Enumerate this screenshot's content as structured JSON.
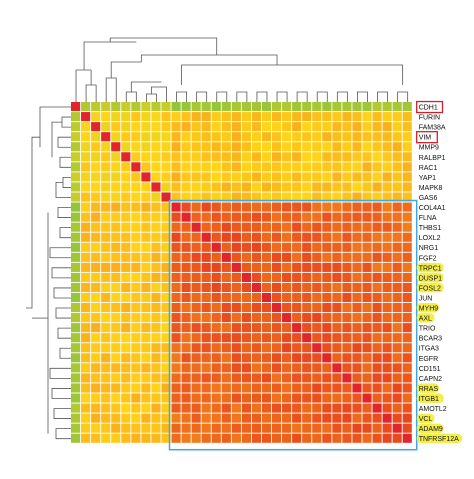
{
  "chart_data": {
    "type": "heatmap",
    "title": "",
    "xlabel": "",
    "ylabel": "",
    "row_labels": [
      "CDH1",
      "FURIN",
      "FAM38A",
      "VIM",
      "MMP9",
      "RALBP1",
      "RAC1",
      "YAP1",
      "MAPK8",
      "GAS6",
      "COL4A1",
      "FLNA",
      "THBS1",
      "LOXL2",
      "NRG1",
      "FGF2",
      "TRPC1",
      "DUSP1",
      "FOSL2",
      "JUN",
      "MYH9",
      "AXL",
      "TRIO",
      "BCAR3",
      "ITGA3",
      "EGFR",
      "CD151",
      "CAPN2",
      "RRAS",
      "ITGB1",
      "AMOTL2",
      "VCL",
      "ADAM9",
      "TNFRSF12A"
    ],
    "column_labels_visible": [
      "CDH1",
      "FURIN",
      "FAM38A",
      "VIM",
      "MMP9",
      "RALBP1",
      "RAC1",
      "YAP1",
      "MAPK8",
      "GAS6",
      "COL4A1",
      "FLNA",
      "THBS1",
      "LOXL2",
      "NRG1",
      "FGF2",
      "TRPC1",
      "DUSP1",
      "FOSL2",
      "JUN",
      "MYH9",
      "AXL",
      "TRIO",
      "BCAR3",
      "ITGA3",
      "EGFR",
      "CD151",
      "CAPN2",
      "RRAS",
      "ITGB1",
      "AMOTL2",
      "VCL",
      "ADAM9",
      "TNFRSF12A"
    ],
    "column_labels_printed": [
      "DH1",
      "JRIN",
      "38A",
      "VIM",
      "MP9",
      "LBP1",
      "RAC1",
      "YAP1",
      "APK8",
      "AS6",
      "L4A1",
      "FLNA",
      "HBS1",
      "OXL2",
      "NRG1",
      "FGF2",
      "RPC1",
      "USP1",
      "OSL2",
      "JUN",
      "MYH9",
      "AXL",
      "TRIO",
      "CAR3",
      "GA3",
      "GFR",
      "D151",
      "APN2",
      "RAS",
      "GB1",
      "OTL2",
      "VCL",
      "AM9",
      "F12A"
    ],
    "highlighted_red_box": [
      "CDH1",
      "VIM"
    ],
    "highlighted_yellow": [
      "TRPC1",
      "DUSP1",
      "FOSL2",
      "MYH9",
      "AXL",
      "RRAS",
      "ITGB1",
      "VCL",
      "ADAM9",
      "TNFRSF12A"
    ],
    "cluster_block": {
      "from": "COL4A1",
      "to": "TNFRSF12A"
    },
    "color_scale": {
      "low": "#7cc043",
      "mid": "#ffd61a",
      "high": "#e8461e",
      "max": "#e0262a"
    },
    "values": "34x34 correlation matrix, symmetric, diagonal = 1; CDH1 correlates low (0.1–0.3) with the rest; genes COL4A1..TNFRSF12A form a high-correlation block (~0.75–0.9); upper genes ~0.4–0.6"
  }
}
